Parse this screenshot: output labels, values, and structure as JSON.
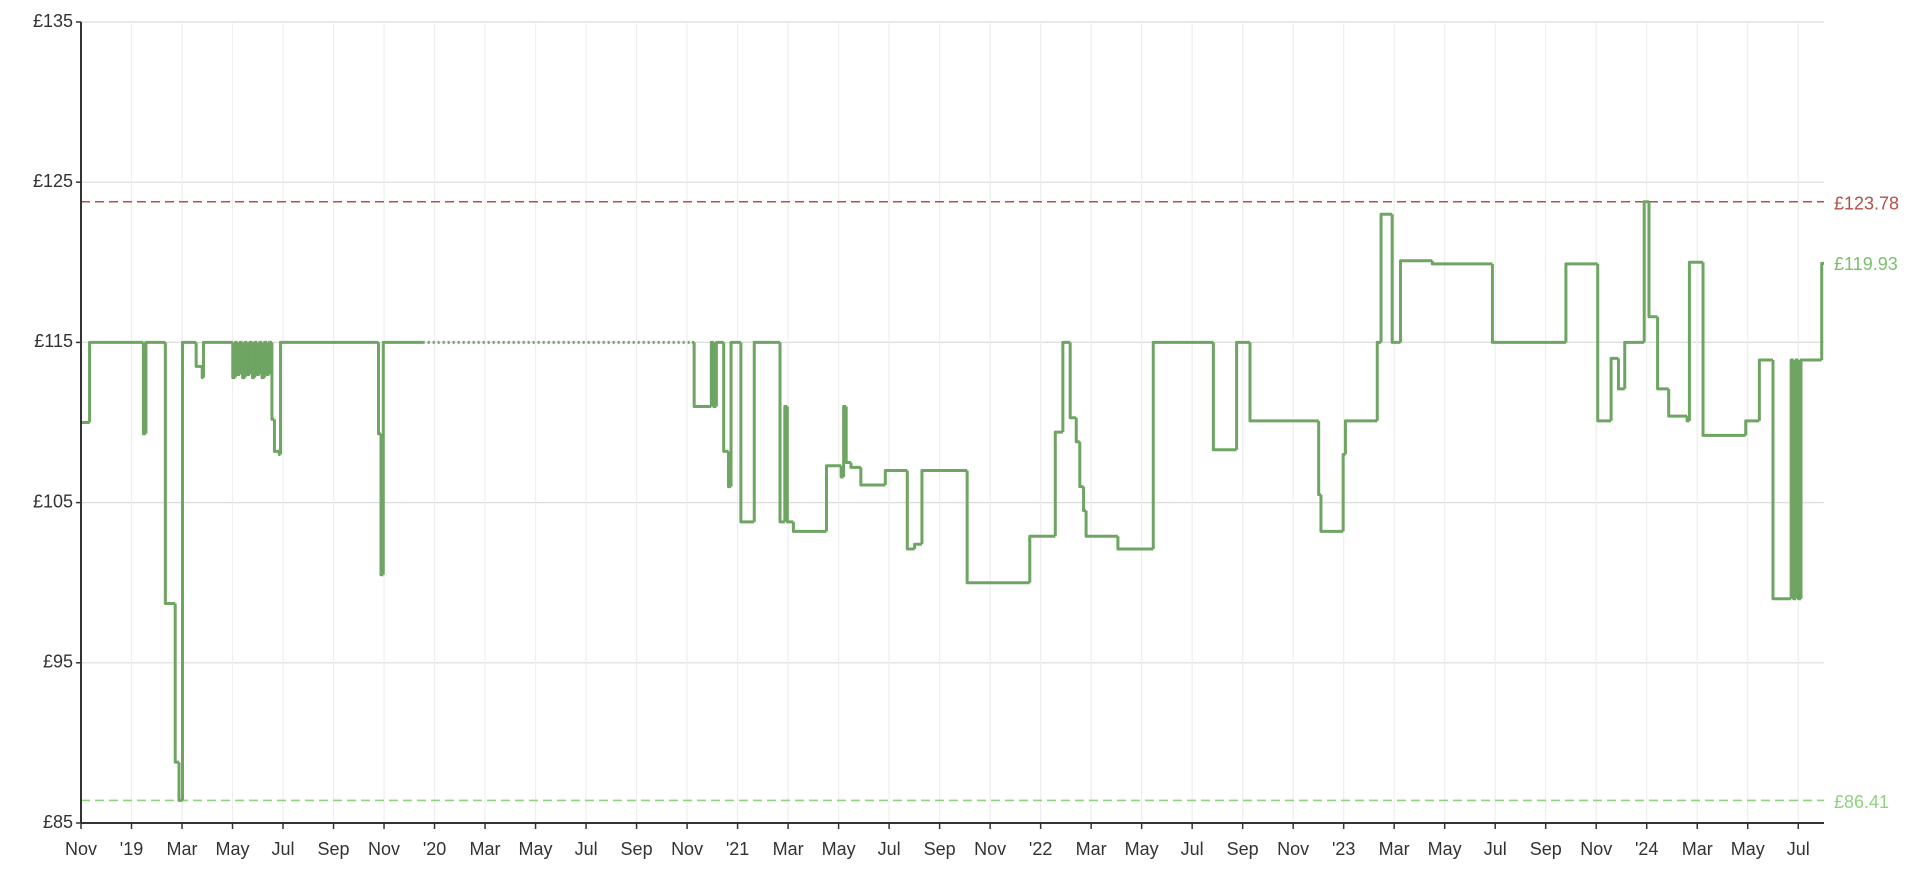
{
  "chart_data": {
    "type": "line",
    "step": "post",
    "color": "#6ea562",
    "grid": true,
    "x": [
      0,
      0.34,
      2.47,
      2.57,
      3.34,
      3.73,
      3.88,
      4.02,
      4.56,
      4.65,
      4.8,
      4.85,
      6.01,
      6.11,
      6.2,
      6.3,
      6.4,
      6.5,
      6.59,
      6.69,
      6.79,
      6.88,
      6.98,
      7.08,
      7.17,
      7.27,
      7.37,
      7.46,
      7.56,
      7.66,
      7.85,
      7.9,
      11.78,
      11.88,
      11.97,
      13.52,
      13.53,
      24.19,
      24.28,
      24.96,
      25.06,
      25.16,
      25.45,
      25.64,
      25.74,
      26.13,
      26.66,
      27.68,
      27.87,
      27.97,
      28.21,
      29.52,
      30.1,
      30.2,
      30.3,
      30.49,
      30.88,
      31.85,
      32.72,
      33.01,
      33.3,
      35.09,
      37.57,
      38.58,
      38.88,
      39.17,
      39.41,
      39.55,
      39.7,
      39.8,
      41.06,
      42.46,
      44.84,
      45.76,
      46.29,
      49.01,
      49.1,
      49.98,
      50.07,
      51.33,
      51.48,
      51.92,
      52.25,
      53.51,
      55.89,
      58.8,
      60.06,
      60.59,
      60.88,
      61.13,
      61.9,
      62.09,
      62.43,
      62.87,
      63.6,
      63.69,
      64.23,
      65.92,
      66.46,
      67.0,
      67.72,
      67.82,
      67.91,
      68.01,
      68.11,
      68.93
    ],
    "values": [
      110,
      115,
      109.3,
      115,
      98.7,
      88.8,
      86.41,
      115,
      113.5,
      113.5,
      112.8,
      115,
      112.8,
      115,
      113,
      115,
      112.8,
      115,
      113,
      115,
      112.8,
      115,
      113,
      115,
      112.8,
      115,
      113,
      115,
      110.2,
      108.2,
      108,
      115,
      109.3,
      100.5,
      115,
      115,
      null,
      115,
      111,
      115,
      111,
      115,
      108.2,
      106,
      115,
      103.8,
      115,
      103.8,
      111,
      103.8,
      103.2,
      107.3,
      106.6,
      111,
      107.5,
      107.2,
      106.1,
      107,
      102.1,
      102.4,
      107,
      100,
      102.9,
      109.4,
      115,
      110.3,
      108.8,
      106,
      104.5,
      102.9,
      102.1,
      115,
      108.3,
      115,
      110.1,
      105.5,
      103.2,
      108,
      110.1,
      115,
      123,
      115,
      120.1,
      119.9,
      115,
      119.9,
      110.1,
      114,
      112.1,
      115,
      123.78,
      116.6,
      112.1,
      110.4,
      110.1,
      120,
      109.2,
      110.1,
      113.9,
      99,
      113.9,
      99,
      113.9,
      99,
      113.9,
      119.93
    ],
    "xlim": [
      0,
      69.02
    ],
    "xticks": [
      {
        "value": 0,
        "label": "Nov"
      },
      {
        "value": 2,
        "label": "'19"
      },
      {
        "value": 4,
        "label": "Mar"
      },
      {
        "value": 6,
        "label": "May"
      },
      {
        "value": 8,
        "label": "Jul"
      },
      {
        "value": 10,
        "label": "Sep"
      },
      {
        "value": 12,
        "label": "Nov"
      },
      {
        "value": 14,
        "label": "'20"
      },
      {
        "value": 16,
        "label": "Mar"
      },
      {
        "value": 18,
        "label": "May"
      },
      {
        "value": 20,
        "label": "Jul"
      },
      {
        "value": 22,
        "label": "Sep"
      },
      {
        "value": 24,
        "label": "Nov"
      },
      {
        "value": 26,
        "label": "'21"
      },
      {
        "value": 28,
        "label": "Mar"
      },
      {
        "value": 30,
        "label": "May"
      },
      {
        "value": 32,
        "label": "Jul"
      },
      {
        "value": 34,
        "label": "Sep"
      },
      {
        "value": 36,
        "label": "Nov"
      },
      {
        "value": 38,
        "label": "'22"
      },
      {
        "value": 40,
        "label": "Mar"
      },
      {
        "value": 42,
        "label": "May"
      },
      {
        "value": 44,
        "label": "Jul"
      },
      {
        "value": 46,
        "label": "Sep"
      },
      {
        "value": 48,
        "label": "Nov"
      },
      {
        "value": 50,
        "label": "'23"
      },
      {
        "value": 52,
        "label": "Mar"
      },
      {
        "value": 54,
        "label": "May"
      },
      {
        "value": 56,
        "label": "Jul"
      },
      {
        "value": 58,
        "label": "Sep"
      },
      {
        "value": 60,
        "label": "Nov"
      },
      {
        "value": 62,
        "label": "'24"
      },
      {
        "value": 64,
        "label": "Mar"
      },
      {
        "value": 66,
        "label": "May"
      },
      {
        "value": 68,
        "label": "Jul"
      }
    ],
    "ylim": [
      85,
      135
    ],
    "yticks": [
      {
        "value": 85,
        "label": "£85"
      },
      {
        "value": 95,
        "label": "£95"
      },
      {
        "value": 105,
        "label": "£105"
      },
      {
        "value": 115,
        "label": "£115"
      },
      {
        "value": 125,
        "label": "£125"
      },
      {
        "value": 135,
        "label": "£135"
      }
    ],
    "reference_lines": [
      {
        "value": 123.78,
        "label": "£123.78",
        "color": "#b0524a"
      },
      {
        "value": 86.41,
        "label": "£86.41",
        "color": "#8fd282"
      }
    ],
    "end_label": {
      "value": 119.93,
      "label": "£119.93",
      "color": "#7cbf6e"
    }
  }
}
